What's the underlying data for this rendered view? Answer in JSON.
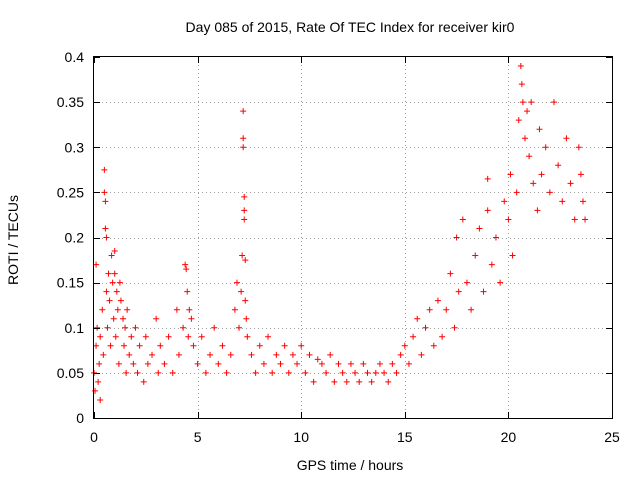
{
  "chart_data": {
    "type": "scatter",
    "title": "Day 085 of 2015, Rate Of TEC Index for receiver kir0",
    "xlabel": "GPS time / hours",
    "ylabel": "ROTI / TECUs",
    "xlim": [
      0,
      25
    ],
    "ylim": [
      0,
      0.4
    ],
    "x_ticks": [
      0,
      5,
      10,
      15,
      20,
      25
    ],
    "x_tick_labels": [
      "0",
      "5",
      "10",
      "15",
      "20",
      "25"
    ],
    "y_ticks": [
      0,
      0.05,
      0.1,
      0.15,
      0.2,
      0.25,
      0.3,
      0.35,
      0.4
    ],
    "y_tick_labels": [
      "0",
      "0.05",
      "0.1",
      "0.15",
      "0.2",
      "0.25",
      "0.3",
      "0.35",
      "0.4"
    ],
    "grid": true,
    "marker": "+",
    "color": "#ff0000",
    "series": [
      {
        "marker": "+",
        "color": "#ff0000",
        "points": [
          [
            0.0,
            0.05
          ],
          [
            0.05,
            0.03
          ],
          [
            0.1,
            0.17
          ],
          [
            0.1,
            0.08
          ],
          [
            0.15,
            0.1
          ],
          [
            0.2,
            0.04
          ],
          [
            0.25,
            0.06
          ],
          [
            0.3,
            0.09
          ],
          [
            0.3,
            0.02
          ],
          [
            0.4,
            0.12
          ],
          [
            0.45,
            0.07
          ],
          [
            0.5,
            0.275
          ],
          [
            0.5,
            0.25
          ],
          [
            0.55,
            0.24
          ],
          [
            0.55,
            0.21
          ],
          [
            0.6,
            0.2
          ],
          [
            0.6,
            0.14
          ],
          [
            0.65,
            0.1
          ],
          [
            0.7,
            0.16
          ],
          [
            0.75,
            0.13
          ],
          [
            0.8,
            0.08
          ],
          [
            0.85,
            0.18
          ],
          [
            0.9,
            0.15
          ],
          [
            0.95,
            0.11
          ],
          [
            1.0,
            0.185
          ],
          [
            1.0,
            0.16
          ],
          [
            1.05,
            0.09
          ],
          [
            1.1,
            0.14
          ],
          [
            1.15,
            0.12
          ],
          [
            1.2,
            0.06
          ],
          [
            1.25,
            0.15
          ],
          [
            1.3,
            0.13
          ],
          [
            1.4,
            0.11
          ],
          [
            1.45,
            0.08
          ],
          [
            1.5,
            0.1
          ],
          [
            1.55,
            0.05
          ],
          [
            1.6,
            0.12
          ],
          [
            1.7,
            0.07
          ],
          [
            1.8,
            0.09
          ],
          [
            1.9,
            0.06
          ],
          [
            2.0,
            0.1
          ],
          [
            2.1,
            0.05
          ],
          [
            2.2,
            0.08
          ],
          [
            2.4,
            0.04
          ],
          [
            2.5,
            0.09
          ],
          [
            2.6,
            0.06
          ],
          [
            2.8,
            0.07
          ],
          [
            3.0,
            0.11
          ],
          [
            3.1,
            0.05
          ],
          [
            3.2,
            0.08
          ],
          [
            3.4,
            0.06
          ],
          [
            3.6,
            0.09
          ],
          [
            3.8,
            0.05
          ],
          [
            4.0,
            0.12
          ],
          [
            4.1,
            0.07
          ],
          [
            4.3,
            0.1
          ],
          [
            4.4,
            0.17
          ],
          [
            4.45,
            0.165
          ],
          [
            4.5,
            0.14
          ],
          [
            4.55,
            0.09
          ],
          [
            4.6,
            0.12
          ],
          [
            4.7,
            0.11
          ],
          [
            4.8,
            0.08
          ],
          [
            5.0,
            0.06
          ],
          [
            5.2,
            0.09
          ],
          [
            5.4,
            0.05
          ],
          [
            5.6,
            0.07
          ],
          [
            5.8,
            0.1
          ],
          [
            6.0,
            0.06
          ],
          [
            6.2,
            0.08
          ],
          [
            6.4,
            0.05
          ],
          [
            6.6,
            0.07
          ],
          [
            6.8,
            0.12
          ],
          [
            6.9,
            0.15
          ],
          [
            7.0,
            0.1
          ],
          [
            7.1,
            0.14
          ],
          [
            7.15,
            0.18
          ],
          [
            7.2,
            0.34
          ],
          [
            7.2,
            0.31
          ],
          [
            7.2,
            0.3
          ],
          [
            7.25,
            0.245
          ],
          [
            7.25,
            0.23
          ],
          [
            7.25,
            0.22
          ],
          [
            7.3,
            0.175
          ],
          [
            7.3,
            0.13
          ],
          [
            7.35,
            0.11
          ],
          [
            7.4,
            0.09
          ],
          [
            7.6,
            0.07
          ],
          [
            7.8,
            0.05
          ],
          [
            8.0,
            0.08
          ],
          [
            8.2,
            0.06
          ],
          [
            8.4,
            0.09
          ],
          [
            8.6,
            0.05
          ],
          [
            8.8,
            0.07
          ],
          [
            9.0,
            0.06
          ],
          [
            9.2,
            0.08
          ],
          [
            9.4,
            0.05
          ],
          [
            9.6,
            0.07
          ],
          [
            9.8,
            0.06
          ],
          [
            10.0,
            0.08
          ],
          [
            10.2,
            0.05
          ],
          [
            10.4,
            0.07
          ],
          [
            10.6,
            0.04
          ],
          [
            10.8,
            0.065
          ],
          [
            11.0,
            0.06
          ],
          [
            11.2,
            0.05
          ],
          [
            11.4,
            0.07
          ],
          [
            11.6,
            0.04
          ],
          [
            11.8,
            0.06
          ],
          [
            12.0,
            0.05
          ],
          [
            12.2,
            0.04
          ],
          [
            12.4,
            0.06
          ],
          [
            12.6,
            0.05
          ],
          [
            12.8,
            0.04
          ],
          [
            13.0,
            0.06
          ],
          [
            13.2,
            0.05
          ],
          [
            13.4,
            0.04
          ],
          [
            13.6,
            0.05
          ],
          [
            13.8,
            0.06
          ],
          [
            14.0,
            0.05
          ],
          [
            14.2,
            0.04
          ],
          [
            14.4,
            0.06
          ],
          [
            14.6,
            0.05
          ],
          [
            14.8,
            0.07
          ],
          [
            15.0,
            0.08
          ],
          [
            15.2,
            0.06
          ],
          [
            15.4,
            0.09
          ],
          [
            15.6,
            0.11
          ],
          [
            15.8,
            0.07
          ],
          [
            16.0,
            0.1
          ],
          [
            16.2,
            0.12
          ],
          [
            16.4,
            0.08
          ],
          [
            16.6,
            0.13
          ],
          [
            16.8,
            0.09
          ],
          [
            17.0,
            0.12
          ],
          [
            17.2,
            0.16
          ],
          [
            17.4,
            0.1
          ],
          [
            17.5,
            0.2
          ],
          [
            17.6,
            0.14
          ],
          [
            17.8,
            0.22
          ],
          [
            18.0,
            0.15
          ],
          [
            18.2,
            0.12
          ],
          [
            18.4,
            0.18
          ],
          [
            18.6,
            0.21
          ],
          [
            18.8,
            0.14
          ],
          [
            19.0,
            0.265
          ],
          [
            19.0,
            0.23
          ],
          [
            19.2,
            0.17
          ],
          [
            19.4,
            0.2
          ],
          [
            19.6,
            0.15
          ],
          [
            19.8,
            0.24
          ],
          [
            20.0,
            0.22
          ],
          [
            20.1,
            0.27
          ],
          [
            20.2,
            0.18
          ],
          [
            20.4,
            0.25
          ],
          [
            20.5,
            0.33
          ],
          [
            20.6,
            0.39
          ],
          [
            20.65,
            0.37
          ],
          [
            20.7,
            0.35
          ],
          [
            20.8,
            0.31
          ],
          [
            20.9,
            0.34
          ],
          [
            21.0,
            0.29
          ],
          [
            21.1,
            0.35
          ],
          [
            21.2,
            0.26
          ],
          [
            21.4,
            0.23
          ],
          [
            21.5,
            0.32
          ],
          [
            21.6,
            0.27
          ],
          [
            21.8,
            0.3
          ],
          [
            22.0,
            0.25
          ],
          [
            22.2,
            0.35
          ],
          [
            22.4,
            0.28
          ],
          [
            22.6,
            0.24
          ],
          [
            22.8,
            0.31
          ],
          [
            23.0,
            0.26
          ],
          [
            23.2,
            0.22
          ],
          [
            23.4,
            0.3
          ],
          [
            23.5,
            0.27
          ],
          [
            23.6,
            0.24
          ],
          [
            23.7,
            0.22
          ]
        ]
      }
    ]
  }
}
